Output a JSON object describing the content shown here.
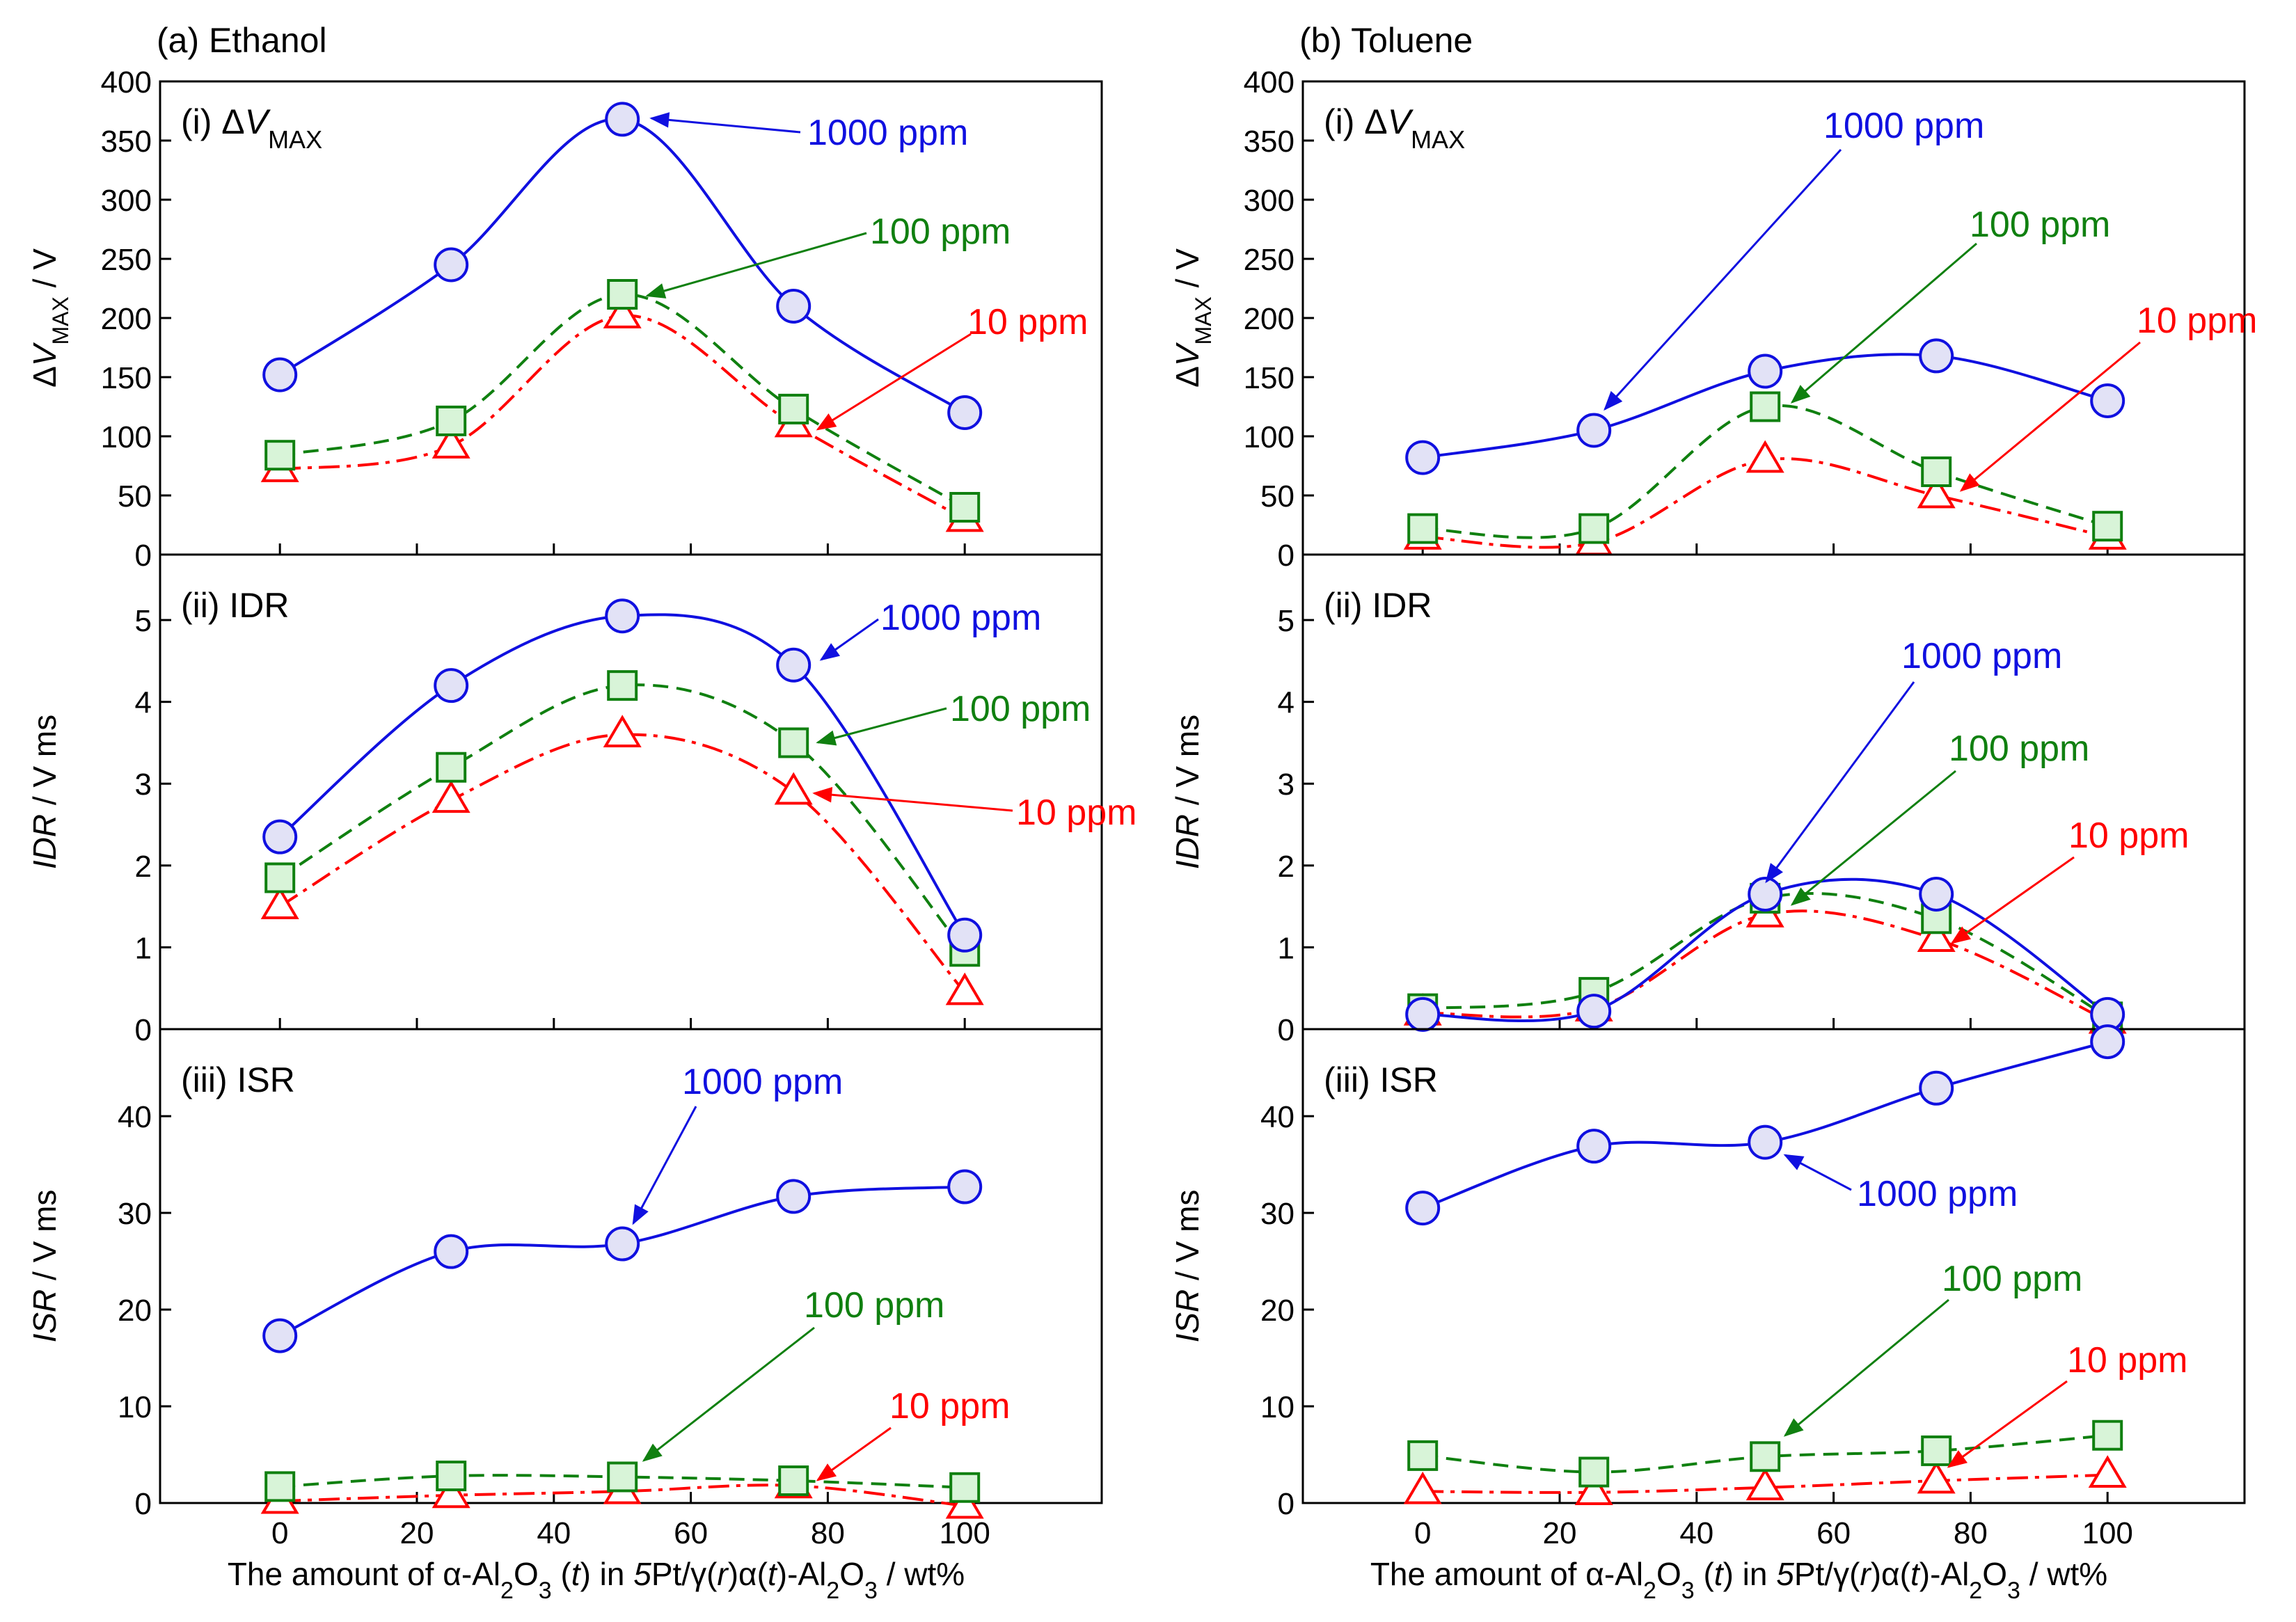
{
  "figure": {
    "x_axis_label_html": "The amount of α-Al<tspan baseline-shift=\"sub\" font-size=\"34\">2</tspan>O<tspan baseline-shift=\"sub\" font-size=\"34\">3</tspan> (<tspan font-style=\"italic\">t</tspan>) in <tspan font-style=\"italic\">5</tspan>Pt/γ(<tspan font-style=\"italic\">r</tspan>)α(<tspan font-style=\"italic\">t</tspan>)-Al<tspan baseline-shift=\"sub\" font-size=\"34\">2</tspan>O<tspan baseline-shift=\"sub\" font-size=\"34\">3</tspan> / wt%"
  },
  "colors": {
    "c1000": "#1010e0",
    "c100": "#108010",
    "c10": "#ff0000",
    "fill1000": "#e2e2f6",
    "fill100": "#d8f4d8",
    "fill10": "#ffffff"
  },
  "chart_data": [
    {
      "column_title": "(a) Ethanol",
      "xticks": [
        0,
        20,
        40,
        60,
        80,
        100
      ],
      "xlim": [
        -17.5,
        120
      ],
      "panels": [
        {
          "type": "line",
          "label": "(i) ΔV",
          "label_sub": "MAX",
          "ylabel": "ΔV",
          "ylabel_sub": "MAX",
          "ylabel_unit": " / V",
          "ylim": [
            0,
            400
          ],
          "yticks": [
            0,
            50,
            100,
            150,
            200,
            250,
            300,
            350,
            400
          ],
          "x": [
            0,
            25,
            50,
            75,
            100
          ],
          "series": [
            {
              "name": "1000 ppm",
              "values": [
                152,
                245,
                368,
                210,
                120
              ]
            },
            {
              "name": "100 ppm",
              "values": [
                84,
                113,
                220,
                123,
                40
              ]
            },
            {
              "name": "10 ppm",
              "values": [
                72,
                92,
                202,
                110,
                30
              ]
            }
          ],
          "annotations": [
            "1000 ppm",
            "100 ppm",
            "10 ppm"
          ]
        },
        {
          "type": "line",
          "label": "(ii) IDR",
          "label_sub": "",
          "ylabel": "IDR",
          "ylabel_sub": "",
          "ylabel_unit": " / V ms",
          "ylim": [
            0,
            5.8
          ],
          "yticks": [
            0,
            1,
            2,
            3,
            4,
            5
          ],
          "x": [
            0,
            25,
            50,
            75,
            100
          ],
          "series": [
            {
              "name": "1000 ppm",
              "values": [
                2.35,
                4.2,
                5.05,
                4.45,
                1.15
              ]
            },
            {
              "name": "100 ppm",
              "values": [
                1.85,
                3.2,
                4.2,
                3.5,
                0.95
              ]
            },
            {
              "name": "10 ppm",
              "values": [
                1.5,
                2.8,
                3.6,
                2.9,
                0.45
              ]
            }
          ],
          "annotations": [
            "1000 ppm",
            "100 ppm",
            "10 ppm"
          ]
        },
        {
          "type": "line",
          "label": "(iii) ISR",
          "label_sub": "",
          "ylabel": "ISR",
          "ylabel_sub": "",
          "ylabel_unit": " / V ms",
          "ylim": [
            0,
            49
          ],
          "yticks": [
            0,
            10,
            20,
            30,
            40
          ],
          "x": [
            0,
            25,
            50,
            75,
            100
          ],
          "series": [
            {
              "name": "1000 ppm",
              "values": [
                17.3,
                26,
                26.8,
                31.7,
                32.7
              ]
            },
            {
              "name": "100 ppm",
              "values": [
                1.7,
                2.8,
                2.7,
                2.3,
                1.6
              ]
            },
            {
              "name": "10 ppm",
              "values": [
                0.2,
                0.8,
                1.2,
                1.8,
                -0.3
              ]
            }
          ],
          "annotations": [
            "1000 ppm",
            "100 ppm",
            "10 ppm"
          ]
        }
      ]
    },
    {
      "column_title": "(b) Toluene",
      "xticks": [
        0,
        20,
        40,
        60,
        80,
        100
      ],
      "xlim": [
        -17.5,
        120
      ],
      "panels": [
        {
          "type": "line",
          "label": "(i) ΔV",
          "label_sub": "MAX",
          "ylabel": "ΔV",
          "ylabel_sub": "MAX",
          "ylabel_unit": " / V",
          "ylim": [
            0,
            400
          ],
          "yticks": [
            0,
            50,
            100,
            150,
            200,
            250,
            300,
            350,
            400
          ],
          "x": [
            0,
            25,
            50,
            75,
            100
          ],
          "series": [
            {
              "name": "1000 ppm",
              "values": [
                82,
                105,
                155,
                168,
                130
              ]
            },
            {
              "name": "100 ppm",
              "values": [
                22,
                22,
                125,
                70,
                24
              ]
            },
            {
              "name": "10 ppm",
              "values": [
                15,
                10,
                80,
                50,
                15
              ]
            }
          ],
          "annotations": [
            "1000 ppm",
            "100 ppm",
            "10 ppm"
          ]
        },
        {
          "type": "line",
          "label": "(ii) IDR",
          "label_sub": "",
          "ylabel": "IDR",
          "ylabel_sub": "",
          "ylabel_unit": " / V ms",
          "ylim": [
            0,
            5.8
          ],
          "yticks": [
            0,
            1,
            2,
            3,
            4,
            5
          ],
          "x": [
            0,
            25,
            50,
            75,
            100
          ],
          "series": [
            {
              "name": "1000 ppm",
              "values": [
                0.18,
                0.22,
                1.65,
                1.65,
                0.18
              ]
            },
            {
              "name": "100 ppm",
              "values": [
                0.25,
                0.45,
                1.6,
                1.35,
                0.15
              ]
            },
            {
              "name": "10 ppm",
              "values": [
                0.2,
                0.25,
                1.4,
                1.1,
                0.1
              ]
            }
          ],
          "annotations": [
            "1000 ppm",
            "100 ppm",
            "10 ppm"
          ]
        },
        {
          "type": "line",
          "label": "(iii) ISR",
          "label_sub": "",
          "ylabel": "ISR",
          "ylabel_sub": "",
          "ylabel_unit": " / V ms",
          "ylim": [
            0,
            49
          ],
          "yticks": [
            0,
            10,
            20,
            30,
            40
          ],
          "x": [
            0,
            25,
            50,
            75,
            100
          ],
          "series": [
            {
              "name": "1000 ppm",
              "values": [
                30.5,
                36.9,
                37.3,
                42.9,
                47.7
              ]
            },
            {
              "name": "100 ppm",
              "values": [
                4.9,
                3.2,
                4.8,
                5.4,
                7
              ]
            },
            {
              "name": "10 ppm",
              "values": [
                1.2,
                1.1,
                1.6,
                2.3,
                2.9
              ]
            }
          ],
          "annotations": [
            "1000 ppm",
            "100 ppm",
            "10 ppm"
          ]
        }
      ]
    }
  ]
}
